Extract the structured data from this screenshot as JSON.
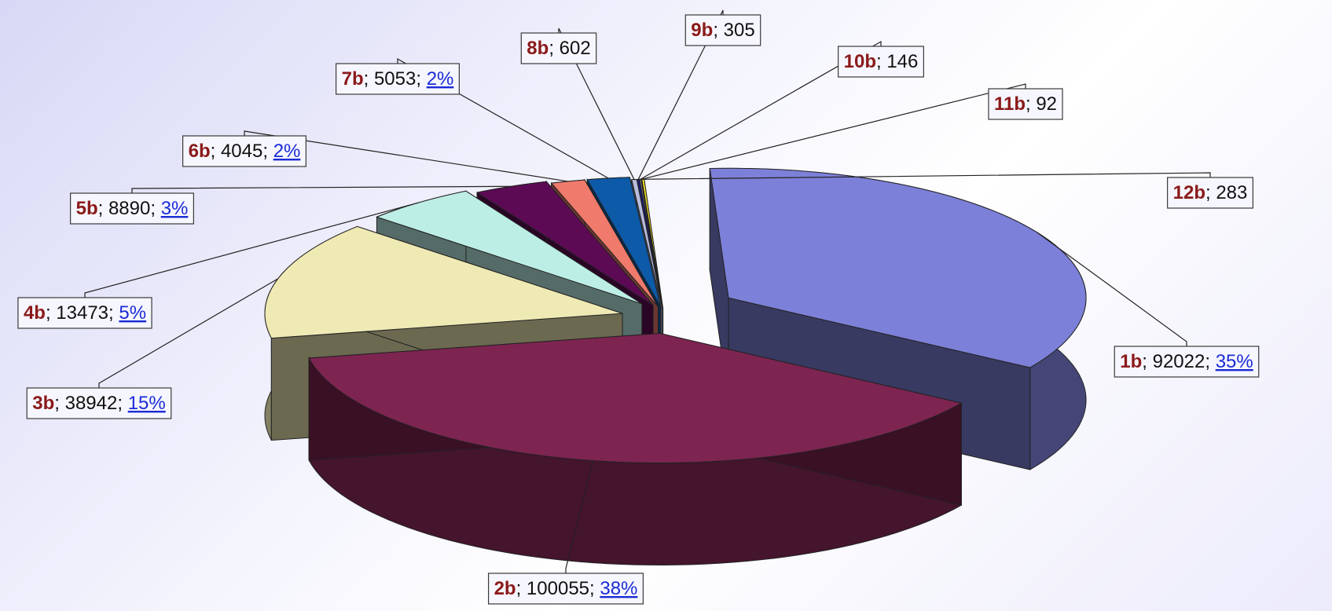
{
  "chart_data": {
    "type": "pie",
    "style": "3d-exploded",
    "slices": [
      {
        "name": "1b",
        "value": 92022,
        "percent": "35%",
        "color": "#7d80d8"
      },
      {
        "name": "2b",
        "value": 100055,
        "percent": "38%",
        "color": "#7e2451"
      },
      {
        "name": "3b",
        "value": 38942,
        "percent": "15%",
        "color": "#efeab4"
      },
      {
        "name": "4b",
        "value": 13473,
        "percent": "5%",
        "color": "#bdeee6"
      },
      {
        "name": "5b",
        "value": 8890,
        "percent": "3%",
        "color": "#5d0a55"
      },
      {
        "name": "6b",
        "value": 4045,
        "percent": "2%",
        "color": "#f07a6c"
      },
      {
        "name": "7b",
        "value": 5053,
        "percent": "2%",
        "color": "#0c5aa8"
      },
      {
        "name": "8b",
        "value": 602,
        "percent": "",
        "color": "#b8bcdc"
      },
      {
        "name": "9b",
        "value": 305,
        "percent": "",
        "color": "#1a1a70"
      },
      {
        "name": "10b",
        "value": 146,
        "percent": "",
        "color": "#e0e0e8"
      },
      {
        "name": "11b",
        "value": 92,
        "percent": "",
        "color": "#8a8a8a"
      },
      {
        "name": "12b",
        "value": 283,
        "percent": "",
        "color": "#f5e31a"
      }
    ]
  }
}
